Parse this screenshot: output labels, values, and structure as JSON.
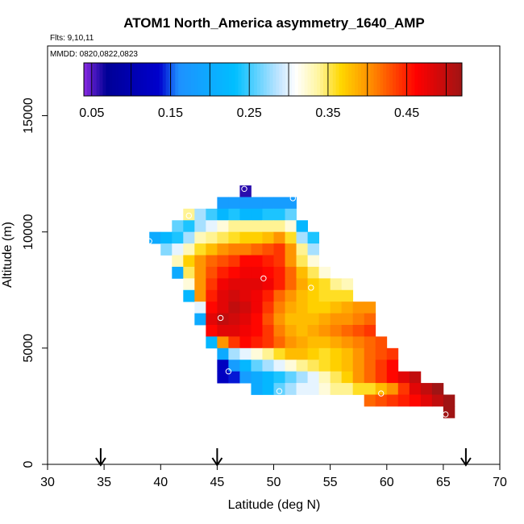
{
  "chart_data": {
    "type": "heatmap",
    "title": "ATOM1 North_America asymmetry_1640_AMP",
    "flights_label": "Flts: 9,10,11",
    "dates_label": "MMDD: 0820,0822,0823",
    "xlabel": "Latitude (deg N)",
    "ylabel": "Altitude (m)",
    "xlim": [
      30,
      70
    ],
    "ylim": [
      0,
      18000
    ],
    "xticks": [
      "30",
      "35",
      "40",
      "45",
      "50",
      "55",
      "60",
      "65",
      "70"
    ],
    "yticks": [
      "0",
      "5000",
      "10000",
      "15000"
    ],
    "colorbar": {
      "range": [
        0.04,
        0.52
      ],
      "tick_values": [
        0.05,
        0.15,
        0.25,
        0.35,
        0.45
      ],
      "tick_labels": [
        "0.05",
        "0.15",
        "0.25",
        "0.35",
        "0.45"
      ]
    },
    "bin_size": {
      "lat": 1,
      "alt": 500
    },
    "arrows_lat": [
      34.7,
      45,
      67
    ],
    "circles": [
      {
        "lat": 47.4,
        "alt": 11850
      },
      {
        "lat": 51.7,
        "alt": 11450
      },
      {
        "lat": 42.5,
        "alt": 10700
      },
      {
        "lat": 39.0,
        "alt": 9600
      },
      {
        "lat": 49.1,
        "alt": 8000
      },
      {
        "lat": 53.3,
        "alt": 7600
      },
      {
        "lat": 45.3,
        "alt": 6300
      },
      {
        "lat": 46.0,
        "alt": 4000
      },
      {
        "lat": 50.5,
        "alt": 3150
      },
      {
        "lat": 59.5,
        "alt": 3050
      },
      {
        "lat": 65.2,
        "alt": 2150
      }
    ],
    "rows": [
      {
        "alt": 11750,
        "lat0": 47,
        "values": [
          0.06
        ]
      },
      {
        "alt": 11250,
        "lat0": 45,
        "values": [
          0.18,
          0.18,
          0.18,
          0.18,
          0.18,
          0.18,
          0.18
        ]
      },
      {
        "alt": 10750,
        "lat0": 42,
        "values": [
          0.34,
          0.28,
          0.25,
          0.22,
          0.24,
          0.22,
          0.22,
          0.24,
          0.24,
          0.26
        ]
      },
      {
        "alt": 10250,
        "lat0": 41,
        "values": [
          0.26,
          0.24,
          0.28,
          0.3,
          0.32,
          0.34,
          0.34,
          0.34,
          0.34,
          0.34,
          0.32,
          0.22
        ]
      },
      {
        "alt": 9750,
        "lat0": 39,
        "values": [
          0.2,
          0.22,
          0.24,
          0.28,
          0.33,
          0.34,
          0.35,
          0.36,
          0.37,
          0.37,
          0.38,
          0.4,
          0.36,
          0.28,
          0.24
        ]
      },
      {
        "alt": 9250,
        "lat0": 40,
        "values": [
          0.27,
          0.3,
          0.33,
          0.36,
          0.38,
          0.4,
          0.41,
          0.41,
          0.42,
          0.43,
          0.44,
          0.4,
          0.34,
          0.28
        ]
      },
      {
        "alt": 8750,
        "lat0": 41,
        "values": [
          0.33,
          0.37,
          0.4,
          0.42,
          0.43,
          0.44,
          0.46,
          0.46,
          0.45,
          0.44,
          0.4,
          0.35,
          0.32
        ]
      },
      {
        "alt": 8250,
        "lat0": 41,
        "values": [
          0.2,
          0.35,
          0.4,
          0.43,
          0.45,
          0.46,
          0.47,
          0.47,
          0.46,
          0.45,
          0.42,
          0.38,
          0.35,
          0.32
        ]
      },
      {
        "alt": 7750,
        "lat0": 42,
        "values": [
          0.32,
          0.4,
          0.44,
          0.47,
          0.48,
          0.48,
          0.48,
          0.47,
          0.45,
          0.42,
          0.39,
          0.37,
          0.36,
          0.34,
          0.33
        ]
      },
      {
        "alt": 7250,
        "lat0": 42,
        "values": [
          0.22,
          0.4,
          0.45,
          0.48,
          0.49,
          0.48,
          0.47,
          0.45,
          0.42,
          0.4,
          0.38,
          0.37,
          0.36,
          0.36,
          0.36
        ]
      },
      {
        "alt": 6750,
        "lat0": 43,
        "values": [
          0.3,
          0.46,
          0.48,
          0.5,
          0.49,
          0.47,
          0.44,
          0.41,
          0.39,
          0.38,
          0.37,
          0.37,
          0.38,
          0.39,
          0.4,
          0.4
        ]
      },
      {
        "alt": 6250,
        "lat0": 43,
        "values": [
          0.2,
          0.48,
          0.5,
          0.49,
          0.48,
          0.46,
          0.43,
          0.4,
          0.38,
          0.38,
          0.38,
          0.39,
          0.4,
          0.4,
          0.41,
          0.42
        ]
      },
      {
        "alt": 5750,
        "lat0": 44,
        "values": [
          0.46,
          0.48,
          0.48,
          0.47,
          0.46,
          0.44,
          0.41,
          0.39,
          0.38,
          0.39,
          0.4,
          0.41,
          0.42,
          0.43,
          0.44
        ]
      },
      {
        "alt": 5250,
        "lat0": 44,
        "values": [
          0.22,
          0.4,
          0.44,
          0.46,
          0.45,
          0.44,
          0.42,
          0.4,
          0.39,
          0.38,
          0.38,
          0.39,
          0.4,
          0.41,
          0.42,
          0.43
        ]
      },
      {
        "alt": 4750,
        "lat0": 45,
        "values": [
          0.2,
          0.28,
          0.3,
          0.32,
          0.34,
          0.36,
          0.38,
          0.38,
          0.37,
          0.36,
          0.37,
          0.38,
          0.4,
          0.42,
          0.43,
          0.44
        ]
      },
      {
        "alt": 4250,
        "lat0": 45,
        "values": [
          0.12,
          0.18,
          0.22,
          0.26,
          0.28,
          0.3,
          0.32,
          0.34,
          0.35,
          0.36,
          0.37,
          0.38,
          0.4,
          0.42,
          0.44,
          0.46
        ]
      },
      {
        "alt": 3750,
        "lat0": 45,
        "values": [
          0.12,
          0.14,
          0.18,
          0.2,
          0.22,
          0.24,
          0.26,
          0.28,
          0.3,
          0.33,
          0.35,
          0.37,
          0.4,
          0.42,
          0.44,
          0.46,
          0.48,
          0.5
        ]
      },
      {
        "alt": 3250,
        "lat0": 48,
        "values": [
          0.2,
          0.22,
          0.26,
          0.28,
          0.3,
          0.3,
          0.32,
          0.34,
          0.34,
          0.36,
          0.36,
          0.38,
          0.4,
          0.44,
          0.48,
          0.5,
          0.52
        ]
      },
      {
        "alt": 2750,
        "lat0": 58,
        "values": [
          0.42,
          0.43,
          0.44,
          0.45,
          0.46,
          0.48,
          0.5,
          0.52
        ]
      },
      {
        "alt": 2250,
        "lat0": 65,
        "values": [
          0.52
        ]
      }
    ]
  }
}
